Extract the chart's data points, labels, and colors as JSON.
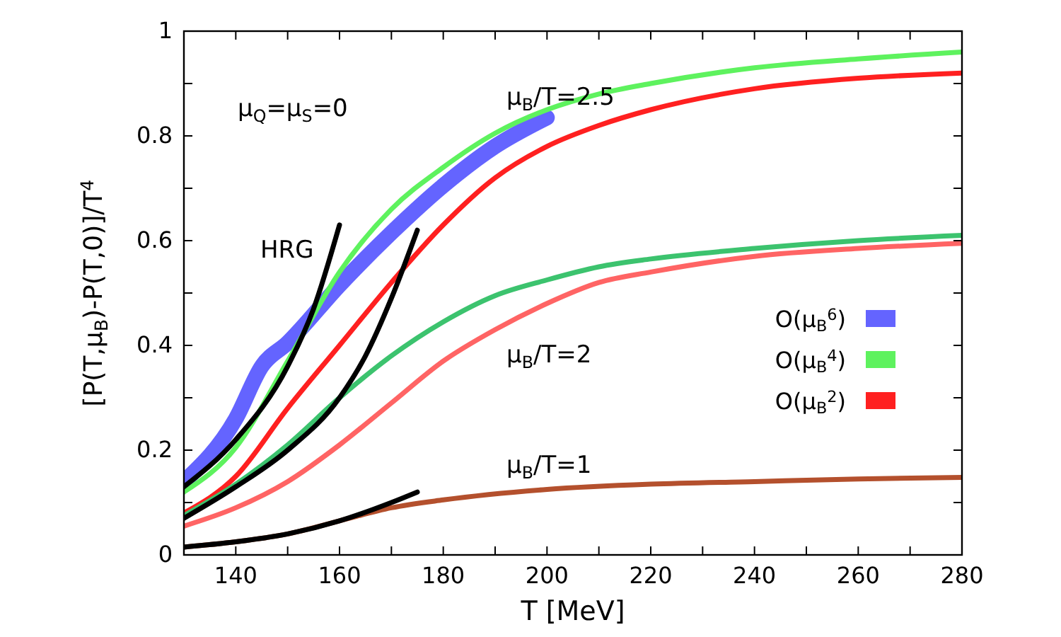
{
  "chart_data": {
    "type": "line",
    "xlabel": "T [MeV]",
    "ylabel": "[P(T,μ$_{B}$)-P(T,0)]/T$^{4}$",
    "xlim": [
      130,
      280
    ],
    "ylim": [
      0,
      1
    ],
    "xticks": [
      140,
      {
        "value": 150,
        "label": null
      },
      160,
      {
        "value": 170,
        "label": null
      },
      180,
      {
        "value": 190,
        "label": null
      },
      200,
      {
        "value": 210,
        "label": null
      },
      220,
      {
        "value": 230,
        "label": null
      },
      240,
      {
        "value": 250,
        "label": null
      },
      260,
      {
        "value": 270,
        "label": null
      },
      280
    ],
    "yticks": [
      0,
      {
        "value": 0.1,
        "label": null
      },
      0.2,
      {
        "value": 0.3,
        "label": null
      },
      0.4,
      {
        "value": 0.5,
        "label": null
      },
      0.6,
      {
        "value": 0.7,
        "label": null
      },
      0.8,
      {
        "value": 0.9,
        "label": null
      },
      1
    ],
    "grid": false,
    "legend": "right",
    "marker": "none",
    "line_style": "solid",
    "annotations": [
      "μ$_{B}$/T=2.5",
      "μ$_{B}$/T=2",
      "μ$_{B}$/T=1",
      "HRG",
      "μ$_{Q}$=μ$_{S}$=0"
    ],
    "series": [
      {
        "name": "O(μ$_{B}$$^{6}$)",
        "color": "#6464ff",
        "x": [
          130,
          140,
          145,
          150,
          160,
          170,
          180,
          190,
          200
        ],
        "values": [
          0.14,
          0.26,
          0.36,
          0.405,
          0.515,
          0.615,
          0.705,
          0.78,
          0.835
        ]
      },
      {
        "name": "O(μ$_{B}$$^{4}$)",
        "color": "#5ef25e",
        "x": [
          130,
          140,
          150,
          160,
          170,
          180,
          190,
          200,
          210,
          220,
          240,
          260,
          280
        ],
        "values": [
          0.12,
          0.205,
          0.37,
          0.54,
          0.66,
          0.74,
          0.805,
          0.85,
          0.88,
          0.9,
          0.93,
          0.947,
          0.96
        ]
      },
      {
        "name": "O(μ$_{B}$$^{2}$)",
        "color": "#ff2020",
        "x": [
          130,
          140,
          150,
          160,
          170,
          180,
          190,
          200,
          210,
          220,
          240,
          260,
          280
        ],
        "values": [
          0.08,
          0.15,
          0.28,
          0.4,
          0.52,
          0.63,
          0.72,
          0.78,
          0.82,
          0.85,
          0.89,
          0.91,
          0.92
        ]
      },
      {
        "color": "#3cc36e",
        "x": [
          130,
          140,
          150,
          160,
          170,
          180,
          190,
          200,
          210,
          220,
          240,
          260,
          280
        ],
        "values": [
          0.075,
          0.135,
          0.21,
          0.3,
          0.38,
          0.445,
          0.495,
          0.525,
          0.55,
          0.565,
          0.585,
          0.6,
          0.61
        ]
      },
      {
        "color": "#ff6464",
        "x": [
          130,
          140,
          150,
          160,
          170,
          180,
          190,
          200,
          210,
          220,
          240,
          260,
          280
        ],
        "values": [
          0.055,
          0.09,
          0.14,
          0.21,
          0.29,
          0.37,
          0.43,
          0.48,
          0.52,
          0.54,
          0.57,
          0.585,
          0.595
        ]
      },
      {
        "color": "#b4502d",
        "x": [
          130,
          140,
          150,
          160,
          170,
          180,
          200,
          220,
          240,
          260,
          280
        ],
        "values": [
          0.015,
          0.025,
          0.04,
          0.065,
          0.09,
          0.105,
          0.125,
          0.135,
          0.14,
          0.145,
          0.148
        ]
      },
      {
        "color": "#000000",
        "x": [
          130,
          140,
          150,
          155,
          160
        ],
        "values": [
          0.13,
          0.22,
          0.36,
          0.47,
          0.63
        ]
      },
      {
        "color": "#000000",
        "x": [
          130,
          140,
          150,
          160,
          165,
          170,
          175
        ],
        "values": [
          0.07,
          0.13,
          0.2,
          0.3,
          0.38,
          0.49,
          0.62
        ]
      },
      {
        "color": "#000000",
        "x": [
          130,
          140,
          150,
          160,
          170,
          175
        ],
        "values": [
          0.015,
          0.025,
          0.04,
          0.065,
          0.1,
          0.12
        ]
      }
    ]
  }
}
